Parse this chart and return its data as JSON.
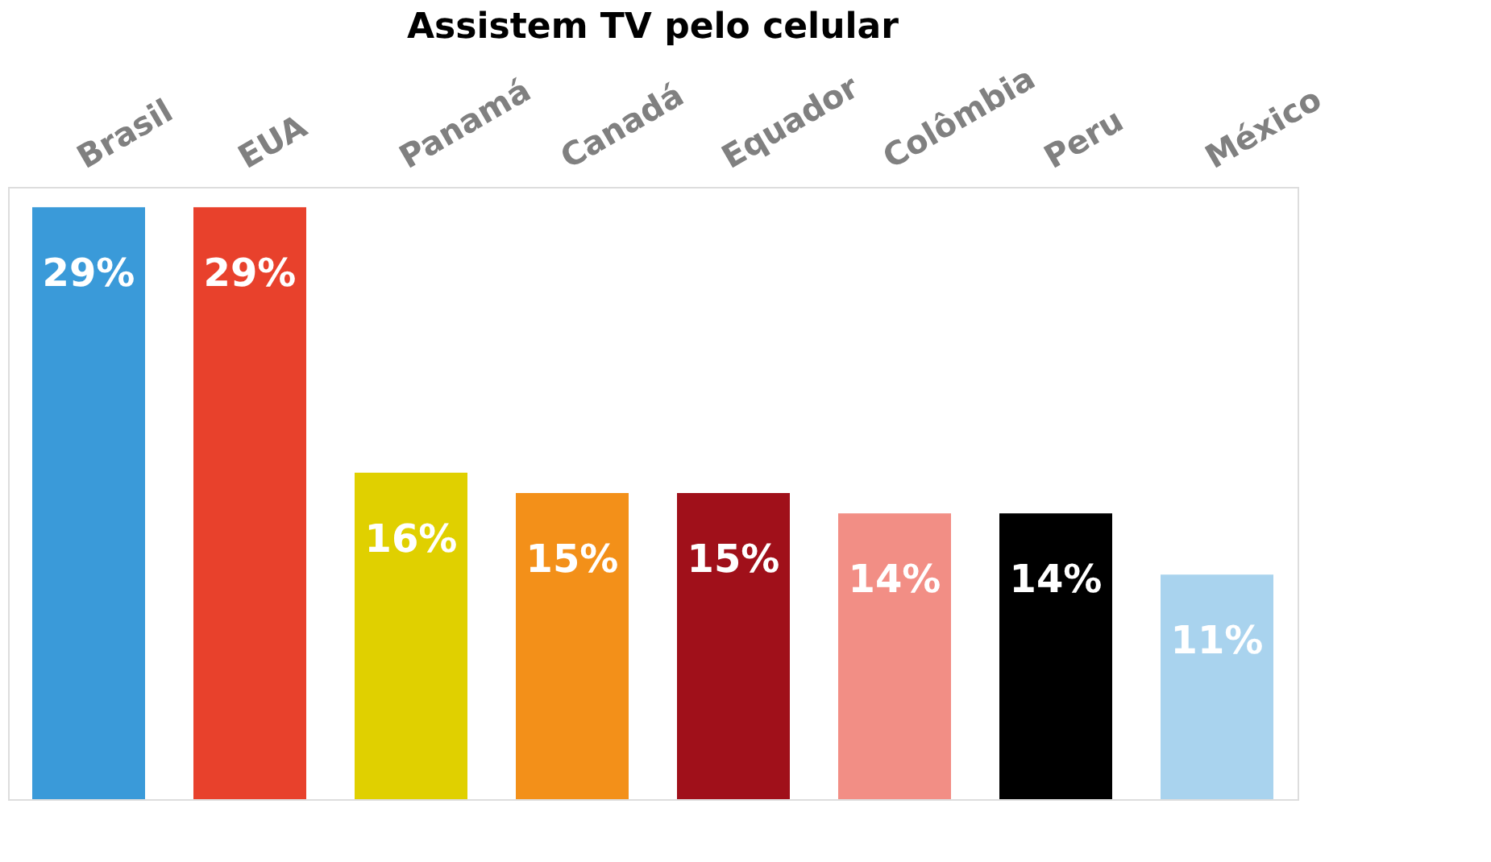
{
  "chart_data": {
    "type": "bar",
    "title": "Assistem TV pelo celular",
    "categories": [
      "Brasil",
      "EUA",
      "Panamá",
      "Canadá",
      "Equador",
      "Colômbia",
      "Peru",
      "México"
    ],
    "values": [
      29,
      29,
      16,
      15,
      15,
      14,
      14,
      11
    ],
    "colors": [
      "#3a9ad9",
      "#e8412c",
      "#e0d000",
      "#f39019",
      "#a0101a",
      "#f28e85",
      "#000000",
      "#a9d3ee"
    ],
    "value_labels": [
      "29%",
      "29%",
      "16%",
      "15%",
      "15%",
      "14%",
      "14%",
      "11%"
    ]
  }
}
